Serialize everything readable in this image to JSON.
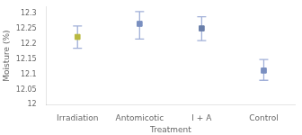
{
  "chart_data": {
    "type": "errorbar",
    "xlabel": "Treatment",
    "ylabel": "Moisture (%)",
    "categories": [
      "Irradiation",
      "Antomicotic",
      "I + A",
      "Control"
    ],
    "values": [
      12.222,
      12.265,
      12.25,
      12.112
    ],
    "error_bars": {
      "lower": [
        12.185,
        12.215,
        12.21,
        12.08
      ],
      "upper": [
        12.258,
        12.305,
        12.288,
        12.148
      ],
      "color": "#a0afd8"
    },
    "colors": [
      "#b8b840",
      "#7a8fc0",
      "#6a7faa",
      "#7a8fc0"
    ],
    "marker": "square",
    "ylim": [
      12.0,
      12.32
    ],
    "yticks": [
      12.0,
      12.05,
      12.1,
      12.15,
      12.2,
      12.25,
      12.3
    ],
    "grid": false
  }
}
